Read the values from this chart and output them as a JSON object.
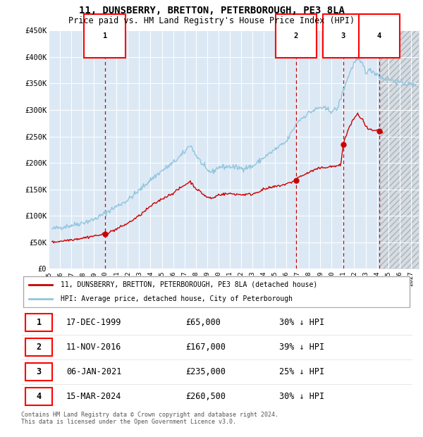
{
  "title": "11, DUNSBERRY, BRETTON, PETERBOROUGH, PE3 8LA",
  "subtitle": "Price paid vs. HM Land Registry's House Price Index (HPI)",
  "title_fontsize": 10,
  "subtitle_fontsize": 8.5,
  "background_color": "#ffffff",
  "plot_bg_color": "#dce9f5",
  "grid_color": "#ffffff",
  "ylim": [
    0,
    450000
  ],
  "yticks": [
    0,
    50000,
    100000,
    150000,
    200000,
    250000,
    300000,
    350000,
    400000,
    450000
  ],
  "ytick_labels": [
    "£0",
    "£50K",
    "£100K",
    "£150K",
    "£200K",
    "£250K",
    "£300K",
    "£350K",
    "£400K",
    "£450K"
  ],
  "xlim_start": 1995.3,
  "xlim_end": 2027.7,
  "xticks": [
    1995,
    1996,
    1997,
    1998,
    1999,
    2000,
    2001,
    2002,
    2003,
    2004,
    2005,
    2006,
    2007,
    2008,
    2009,
    2010,
    2011,
    2012,
    2013,
    2014,
    2015,
    2016,
    2017,
    2018,
    2019,
    2020,
    2021,
    2022,
    2023,
    2024,
    2025,
    2026,
    2027
  ],
  "sale_dates": [
    1999.96,
    2016.86,
    2021.02,
    2024.21
  ],
  "sale_prices": [
    65000,
    167000,
    235000,
    260500
  ],
  "sale_labels": [
    "1",
    "2",
    "3",
    "4"
  ],
  "hpi_line_color": "#92c5de",
  "price_line_color": "#cc0000",
  "sale_marker_color": "#cc0000",
  "vline_color": "#cc0000",
  "future_cutoff": 2024.21,
  "legend_entries": [
    "11, DUNSBERRY, BRETTON, PETERBOROUGH, PE3 8LA (detached house)",
    "HPI: Average price, detached house, City of Peterborough"
  ],
  "table_data": [
    [
      "1",
      "17-DEC-1999",
      "£65,000",
      "30% ↓ HPI"
    ],
    [
      "2",
      "11-NOV-2016",
      "£167,000",
      "39% ↓ HPI"
    ],
    [
      "3",
      "06-JAN-2021",
      "£235,000",
      "25% ↓ HPI"
    ],
    [
      "4",
      "15-MAR-2024",
      "£260,500",
      "30% ↓ HPI"
    ]
  ],
  "footer": "Contains HM Land Registry data © Crown copyright and database right 2024.\nThis data is licensed under the Open Government Licence v3.0."
}
